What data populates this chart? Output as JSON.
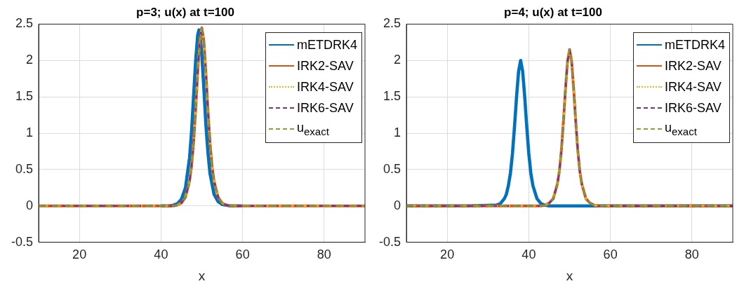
{
  "chart_data": [
    {
      "type": "line",
      "title": "p=3; u(x) at t=100",
      "xlabel": "x",
      "xlim": [
        10,
        90
      ],
      "xticks": [
        20,
        40,
        60,
        80
      ],
      "ylim": [
        -0.5,
        2.5
      ],
      "yticks": [
        -0.5,
        0,
        0.5,
        1,
        1.5,
        2,
        2.5
      ],
      "grid": true,
      "legend": "top right",
      "series": [
        {
          "name": "mETDRK4",
          "color": "#0072bd",
          "line_style": "solid",
          "x": [
            40,
            42,
            43,
            44,
            45,
            46,
            47,
            47.5,
            48,
            48.5,
            49,
            49.3,
            49.5,
            50,
            50.5,
            51,
            51.5,
            52,
            53,
            54,
            55,
            56,
            57,
            60
          ],
          "values": [
            0,
            0,
            0.01,
            0.03,
            0.09,
            0.25,
            0.66,
            1.03,
            1.52,
            2.0,
            2.35,
            2.42,
            2.39,
            2.08,
            1.62,
            1.12,
            0.74,
            0.45,
            0.16,
            0.06,
            0.02,
            0.01,
            0,
            0
          ]
        },
        {
          "name": "IRK2-SAV",
          "color": "#d95319",
          "line_style": "solid",
          "x": [
            10,
            30,
            40,
            43,
            44,
            45,
            46,
            47,
            47.5,
            48,
            48.5,
            49,
            49.5,
            50,
            50.5,
            51,
            51.5,
            52,
            52.5,
            53,
            54,
            55,
            56,
            57,
            60,
            70,
            90
          ],
          "values": [
            0,
            0,
            0,
            0,
            0.01,
            0.04,
            0.12,
            0.34,
            0.55,
            0.88,
            1.33,
            1.84,
            2.27,
            2.45,
            2.27,
            1.84,
            1.33,
            0.88,
            0.55,
            0.34,
            0.12,
            0.04,
            0.01,
            0,
            0,
            0,
            0
          ]
        },
        {
          "name": "IRK4-SAV",
          "color": "#edb120",
          "line_style": "dotted",
          "x": [
            10,
            30,
            40,
            43,
            44,
            45,
            46,
            47,
            47.5,
            48,
            48.5,
            49,
            49.5,
            50,
            50.5,
            51,
            51.5,
            52,
            52.5,
            53,
            54,
            55,
            56,
            57,
            60,
            70,
            90
          ],
          "values": [
            0,
            0,
            0,
            0,
            0.01,
            0.04,
            0.12,
            0.34,
            0.55,
            0.88,
            1.33,
            1.84,
            2.27,
            2.45,
            2.27,
            1.84,
            1.33,
            0.88,
            0.55,
            0.34,
            0.12,
            0.04,
            0.01,
            0,
            0,
            0,
            0
          ]
        },
        {
          "name": "IRK6-SAV",
          "color": "#7e2f8e",
          "line_style": "dashed",
          "x": [
            10,
            30,
            40,
            43,
            44,
            45,
            46,
            47,
            47.5,
            48,
            48.5,
            49,
            49.5,
            50,
            50.5,
            51,
            51.5,
            52,
            52.5,
            53,
            54,
            55,
            56,
            57,
            60,
            70,
            90
          ],
          "values": [
            0,
            0,
            0,
            0,
            0.01,
            0.04,
            0.12,
            0.34,
            0.55,
            0.88,
            1.33,
            1.84,
            2.27,
            2.45,
            2.27,
            1.84,
            1.33,
            0.88,
            0.55,
            0.34,
            0.12,
            0.04,
            0.01,
            0,
            0,
            0,
            0
          ]
        },
        {
          "name": "u$_{exact}$",
          "color": "#77ac30",
          "line_style": "dashed",
          "x": [
            10,
            30,
            40,
            43,
            44,
            45,
            46,
            47,
            47.5,
            48,
            48.5,
            49,
            49.5,
            50,
            50.5,
            51,
            51.5,
            52,
            52.5,
            53,
            54,
            55,
            56,
            57,
            60,
            70,
            90
          ],
          "values": [
            0,
            0,
            0,
            0,
            0.01,
            0.04,
            0.12,
            0.34,
            0.55,
            0.88,
            1.33,
            1.84,
            2.27,
            2.45,
            2.27,
            1.84,
            1.33,
            0.88,
            0.55,
            0.34,
            0.12,
            0.04,
            0.01,
            0,
            0,
            0,
            0
          ]
        }
      ]
    },
    {
      "type": "line",
      "title": "p=4; u(x) at t=100",
      "xlabel": "x",
      "xlim": [
        10,
        90
      ],
      "xticks": [
        20,
        40,
        60,
        80
      ],
      "ylim": [
        -0.5,
        2.5
      ],
      "yticks": [
        -0.5,
        0,
        0.5,
        1,
        1.5,
        2,
        2.5
      ],
      "grid": true,
      "legend": "top right",
      "series": [
        {
          "name": "mETDRK4",
          "color": "#0072bd",
          "line_style": "solid",
          "x": [
            10,
            25,
            31,
            32,
            33,
            34,
            34.5,
            35,
            35.5,
            36,
            36.5,
            37,
            37.5,
            38,
            38.5,
            39,
            39.5,
            40,
            40.5,
            41,
            42,
            43,
            44,
            45,
            50,
            70,
            90
          ],
          "values": [
            0,
            0,
            0.01,
            0.01,
            0.03,
            0.1,
            0.16,
            0.28,
            0.45,
            0.72,
            1.09,
            1.5,
            1.85,
            2.0,
            1.85,
            1.5,
            1.09,
            0.72,
            0.45,
            0.28,
            0.1,
            0.03,
            0.01,
            0,
            0,
            0,
            0
          ]
        },
        {
          "name": "IRK2-SAV",
          "color": "#d95319",
          "line_style": "solid",
          "x": [
            10,
            30,
            40,
            43,
            44,
            45,
            46,
            47,
            47.5,
            48,
            48.5,
            49,
            49.5,
            50,
            50.5,
            51,
            51.5,
            52,
            52.5,
            53,
            54,
            55,
            56,
            57,
            60,
            70,
            90
          ],
          "values": [
            0,
            0,
            0,
            0,
            0.01,
            0.04,
            0.1,
            0.3,
            0.48,
            0.77,
            1.17,
            1.61,
            1.99,
            2.15,
            1.99,
            1.61,
            1.17,
            0.77,
            0.48,
            0.3,
            0.1,
            0.04,
            0.01,
            0,
            0,
            0,
            0
          ]
        },
        {
          "name": "IRK4-SAV",
          "color": "#edb120",
          "line_style": "dotted",
          "x": [
            10,
            30,
            40,
            43,
            44,
            45,
            46,
            47,
            47.5,
            48,
            48.5,
            49,
            49.5,
            50,
            50.5,
            51,
            51.5,
            52,
            52.5,
            53,
            54,
            55,
            56,
            57,
            60,
            70,
            90
          ],
          "values": [
            0,
            0,
            0,
            0,
            0.01,
            0.04,
            0.1,
            0.3,
            0.48,
            0.77,
            1.17,
            1.61,
            1.99,
            2.15,
            1.99,
            1.61,
            1.17,
            0.77,
            0.48,
            0.3,
            0.1,
            0.04,
            0.01,
            0,
            0,
            0,
            0
          ]
        },
        {
          "name": "IRK6-SAV",
          "color": "#7e2f8e",
          "line_style": "dashed",
          "x": [
            10,
            30,
            40,
            43,
            44,
            45,
            46,
            47,
            47.5,
            48,
            48.5,
            49,
            49.5,
            50,
            50.5,
            51,
            51.5,
            52,
            52.5,
            53,
            54,
            55,
            56,
            57,
            60,
            70,
            90
          ],
          "values": [
            0,
            0,
            0,
            0,
            0.01,
            0.04,
            0.1,
            0.3,
            0.48,
            0.77,
            1.17,
            1.61,
            1.99,
            2.15,
            1.99,
            1.61,
            1.17,
            0.77,
            0.48,
            0.3,
            0.1,
            0.04,
            0.01,
            0,
            0,
            0,
            0
          ]
        },
        {
          "name": "u$_{exact}$",
          "color": "#77ac30",
          "line_style": "dashed",
          "x": [
            10,
            30,
            40,
            43,
            44,
            45,
            46,
            47,
            47.5,
            48,
            48.5,
            49,
            49.5,
            50,
            50.5,
            51,
            51.5,
            52,
            52.5,
            53,
            54,
            55,
            56,
            57,
            60,
            70,
            90
          ],
          "values": [
            0,
            0,
            0,
            0,
            0.01,
            0.04,
            0.1,
            0.3,
            0.48,
            0.77,
            1.17,
            1.61,
            1.99,
            2.15,
            1.99,
            1.61,
            1.17,
            0.77,
            0.48,
            0.3,
            0.1,
            0.04,
            0.01,
            0,
            0,
            0,
            0
          ]
        }
      ]
    }
  ]
}
